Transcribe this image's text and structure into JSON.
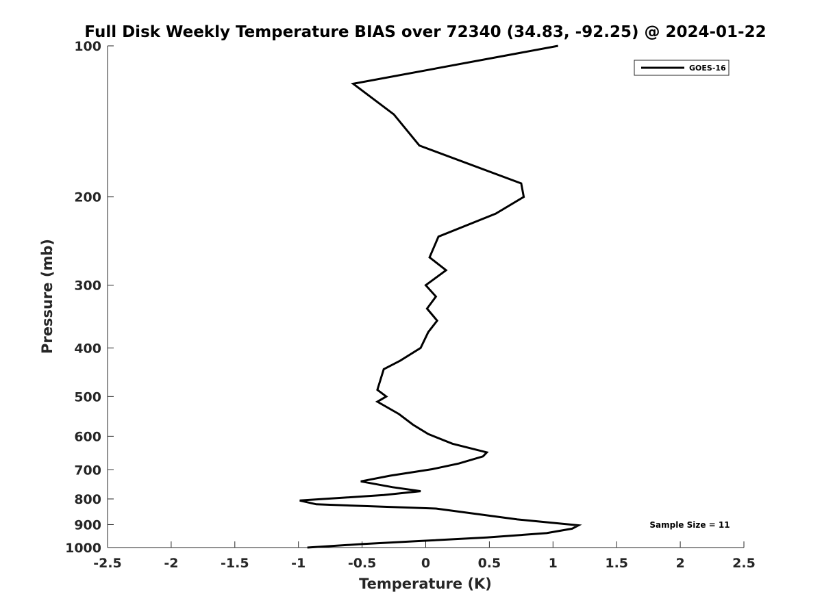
{
  "chart_data": {
    "type": "line",
    "title": "Full Disk Weekly Temperature BIAS over 72340 (34.83, -92.25) @ 2024-01-22",
    "xlabel": "Temperature (K)",
    "ylabel": "Pressure (mb)",
    "xlim": [
      -2.5,
      2.5
    ],
    "ylim": [
      1000,
      100
    ],
    "yscale": "log",
    "y_reversed": true,
    "x_ticks": [
      -2.5,
      -2,
      -1.5,
      -1,
      -0.5,
      0,
      0.5,
      1,
      1.5,
      2,
      2.5
    ],
    "x_tick_labels": [
      "-2.5",
      "-2",
      "-1.5",
      "-1",
      "-0.5",
      "0",
      "0.5",
      "1",
      "1.5",
      "2",
      "2.5"
    ],
    "y_ticks": [
      100,
      200,
      300,
      400,
      500,
      600,
      700,
      800,
      900,
      1000
    ],
    "y_tick_labels": [
      "100",
      "200",
      "300",
      "400",
      "500",
      "600",
      "700",
      "800",
      "900",
      "1000"
    ],
    "grid": false,
    "legend_position": "top-right",
    "annotation": "Sample Size = 11",
    "series": [
      {
        "name": "GOES-16",
        "color": "#000000",
        "points": [
          {
            "x": 1.04,
            "y": 100
          },
          {
            "x": -0.57,
            "y": 119
          },
          {
            "x": -0.25,
            "y": 137
          },
          {
            "x": -0.05,
            "y": 158
          },
          {
            "x": 0.75,
            "y": 188
          },
          {
            "x": 0.77,
            "y": 200
          },
          {
            "x": 0.55,
            "y": 216
          },
          {
            "x": 0.1,
            "y": 240
          },
          {
            "x": 0.03,
            "y": 264
          },
          {
            "x": 0.16,
            "y": 280
          },
          {
            "x": 0.0,
            "y": 300
          },
          {
            "x": 0.08,
            "y": 316
          },
          {
            "x": 0.01,
            "y": 334
          },
          {
            "x": 0.09,
            "y": 353
          },
          {
            "x": 0.02,
            "y": 372
          },
          {
            "x": -0.04,
            "y": 400
          },
          {
            "x": -0.2,
            "y": 424
          },
          {
            "x": -0.33,
            "y": 441
          },
          {
            "x": -0.38,
            "y": 485
          },
          {
            "x": -0.31,
            "y": 500
          },
          {
            "x": -0.38,
            "y": 512
          },
          {
            "x": -0.21,
            "y": 542
          },
          {
            "x": -0.1,
            "y": 569
          },
          {
            "x": 0.02,
            "y": 594
          },
          {
            "x": 0.21,
            "y": 621
          },
          {
            "x": 0.48,
            "y": 646
          },
          {
            "x": 0.45,
            "y": 658
          },
          {
            "x": 0.26,
            "y": 680
          },
          {
            "x": 0.05,
            "y": 698
          },
          {
            "x": -0.28,
            "y": 719
          },
          {
            "x": -0.51,
            "y": 738
          },
          {
            "x": -0.26,
            "y": 758
          },
          {
            "x": -0.04,
            "y": 772
          },
          {
            "x": -0.33,
            "y": 786
          },
          {
            "x": -0.99,
            "y": 806
          },
          {
            "x": -0.86,
            "y": 820
          },
          {
            "x": 0.08,
            "y": 836
          },
          {
            "x": 0.72,
            "y": 879
          },
          {
            "x": 1.2,
            "y": 903
          },
          {
            "x": 1.15,
            "y": 917
          },
          {
            "x": 0.95,
            "y": 936
          },
          {
            "x": 0.48,
            "y": 955
          },
          {
            "x": -0.03,
            "y": 970
          },
          {
            "x": -0.5,
            "y": 984
          },
          {
            "x": -0.93,
            "y": 1000
          }
        ]
      }
    ]
  }
}
